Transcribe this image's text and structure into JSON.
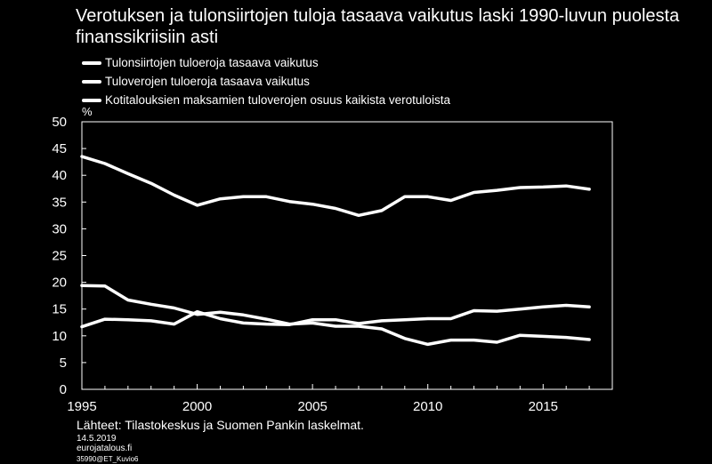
{
  "title": "Verotuksen ja tulonsiirtojen tuloja tasaava vaikutus laski 1990-luvun puolesta finanssikriisiin asti",
  "unit": "%",
  "source": "Lähteet: Tilastokeskus ja Suomen Pankin laskelmat.",
  "date": "14.5.2019",
  "site": "eurojatalous.fi",
  "code": "35990@ET_Kuvio6",
  "colors": {
    "background": "#000000",
    "foreground": "#ffffff"
  },
  "chart_data": {
    "type": "line",
    "title": "Verotuksen ja tulonsiirtojen tuloja tasaava vaikutus laski 1990-luvun puolesta finanssikriisiin asti",
    "ylabel": "%",
    "xlim": [
      1995,
      2018
    ],
    "ylim": [
      0,
      50
    ],
    "yticks": [
      0,
      5,
      10,
      15,
      20,
      25,
      30,
      35,
      40,
      45,
      50
    ],
    "xticks": [
      1995,
      2000,
      2005,
      2010,
      2015
    ],
    "grid": false,
    "legend_position": "top-left",
    "x": [
      1995,
      1996,
      1997,
      1998,
      1999,
      2000,
      2001,
      2002,
      2003,
      2004,
      2005,
      2006,
      2007,
      2008,
      2009,
      2010,
      2011,
      2012,
      2013,
      2014,
      2015,
      2016,
      2017
    ],
    "series": [
      {
        "name": "Tulonsiirtojen tuloeroja tasaava vaikutus",
        "values": [
          19.4,
          19.3,
          16.7,
          15.9,
          15.2,
          14.0,
          14.4,
          13.9,
          13.1,
          12.2,
          12.4,
          11.8,
          11.8,
          11.3,
          9.5,
          8.4,
          9.2,
          9.2,
          8.8,
          10.1,
          9.9,
          9.7,
          9.3
        ]
      },
      {
        "name": "Tuloverojen tuloeroja tasaava vaikutus",
        "values": [
          11.7,
          13.1,
          13.0,
          12.8,
          12.2,
          14.5,
          13.2,
          12.4,
          12.2,
          12.1,
          13.0,
          13.0,
          12.3,
          12.8,
          13.0,
          13.2,
          13.2,
          14.7,
          14.6,
          15.0,
          15.4,
          15.7,
          15.4
        ]
      },
      {
        "name": "Kotitalouksien maksamien tuloverojen osuus kaikista verotuloista",
        "values": [
          43.5,
          42.2,
          40.3,
          38.5,
          36.3,
          34.4,
          35.6,
          36.0,
          36.0,
          35.1,
          34.6,
          33.8,
          32.5,
          33.4,
          36.0,
          36.0,
          35.3,
          36.8,
          37.2,
          37.7,
          37.8,
          38.0,
          37.4
        ]
      }
    ]
  }
}
